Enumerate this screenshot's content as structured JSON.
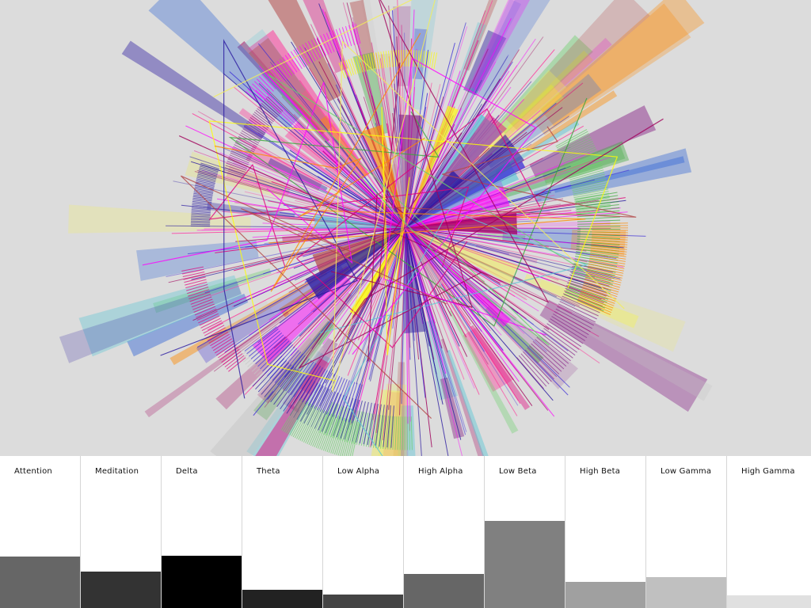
{
  "visualization": {
    "name": "brainwave-radial-burst",
    "background": "#dcdcdc",
    "palette": [
      "#ff00ff",
      "#e0007a",
      "#a0005a",
      "#ff3399",
      "#3a2bd6",
      "#2a1aa0",
      "#ffff00",
      "#f2ee5a",
      "#6ad06a",
      "#39a839",
      "#5fc6d6",
      "#3f6fd6",
      "#ff8a00",
      "#b34747",
      "#8a2a8a",
      "#c4c4c4"
    ]
  },
  "meters": [
    {
      "label": "Attention",
      "level": 0.34,
      "color": "#666666"
    },
    {
      "label": "Meditation",
      "level": 0.24,
      "color": "#333333"
    },
    {
      "label": "Delta",
      "level": 0.345,
      "color": "#000000"
    },
    {
      "label": "Theta",
      "level": 0.12,
      "color": "#222222"
    },
    {
      "label": "Low Alpha",
      "level": 0.09,
      "color": "#444444"
    },
    {
      "label": "High Alpha",
      "level": 0.225,
      "color": "#666666"
    },
    {
      "label": "Low Beta",
      "level": 0.575,
      "color": "#808080"
    },
    {
      "label": "High Beta",
      "level": 0.17,
      "color": "#a0a0a0"
    },
    {
      "label": "Low Gamma",
      "level": 0.205,
      "color": "#c0c0c0"
    },
    {
      "label": "High Gamma",
      "level": 0.085,
      "color": "#e0e0e0"
    }
  ]
}
